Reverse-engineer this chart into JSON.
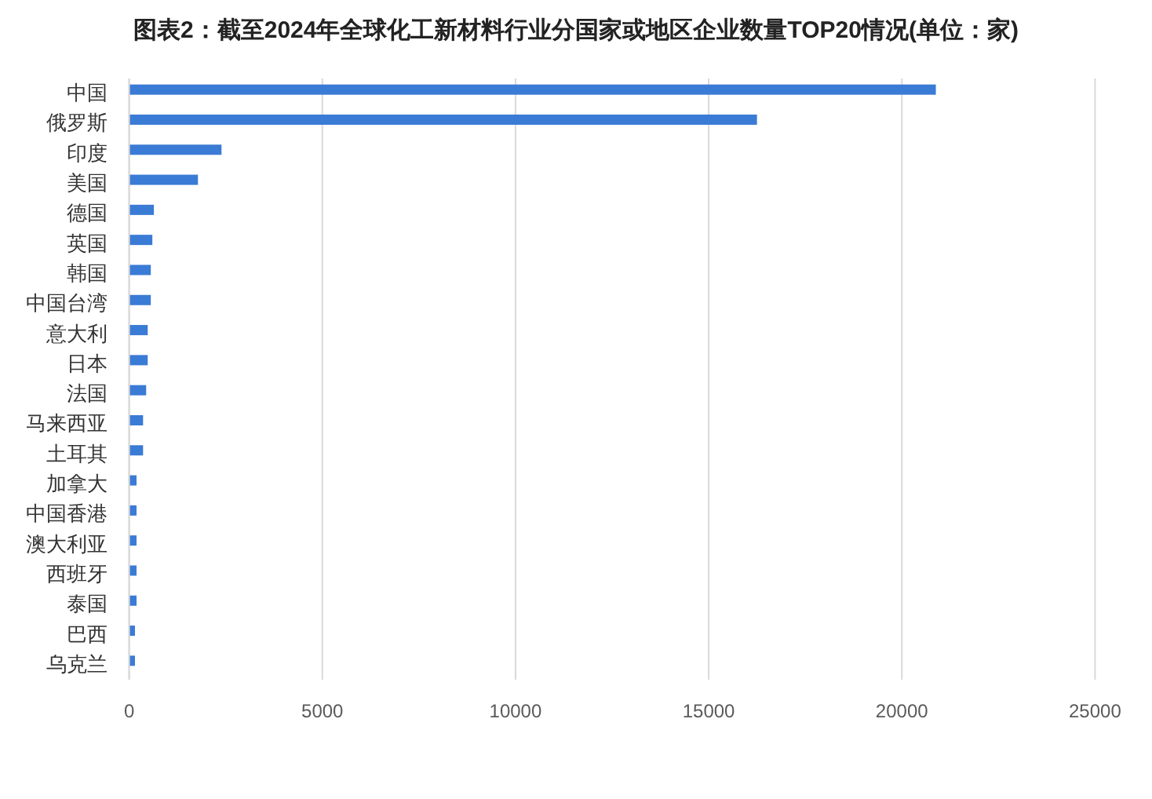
{
  "chart_data": {
    "type": "bar",
    "orientation": "horizontal",
    "title": "图表2：截至2024年全球化工新材料行业分国家或地区企业数量TOP20情况(单位：家)",
    "categories": [
      "中国",
      "俄罗斯",
      "印度",
      "美国",
      "德国",
      "英国",
      "韩国",
      "中国台湾",
      "意大利",
      "日本",
      "法国",
      "马来西亚",
      "土耳其",
      "加拿大",
      "中国香港",
      "澳大利亚",
      "西班牙",
      "泰国",
      "巴西",
      "乌克兰"
    ],
    "values": [
      20880,
      16250,
      2390,
      1780,
      640,
      600,
      560,
      560,
      480,
      480,
      440,
      360,
      360,
      190,
      190,
      190,
      190,
      190,
      150,
      150
    ],
    "color": "#3a7bd5",
    "xlim": [
      0,
      25000
    ],
    "xticks": [
      0,
      5000,
      10000,
      15000,
      20000,
      25000
    ],
    "grid": "x"
  }
}
